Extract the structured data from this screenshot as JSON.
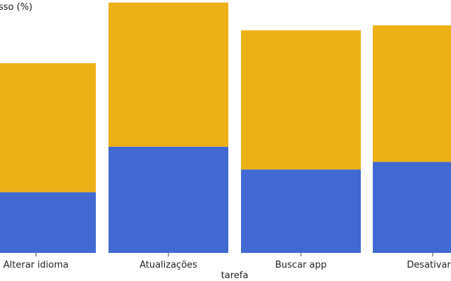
{
  "chart_data": {
    "type": "bar",
    "stacked": true,
    "ylabel": "sso (%)",
    "xlabel": "tarefa",
    "categories": [
      "Alterar idioma",
      "Atualizações",
      "Buscar app",
      "Desativar s"
    ],
    "series": [
      {
        "color": "#4169d1",
        "values": [
          24,
          42,
          33,
          36
        ]
      },
      {
        "color": "#edb118",
        "values": [
          51,
          57,
          55,
          54
        ]
      }
    ],
    "ylim": [
      0,
      100
    ],
    "grid": false,
    "legend": "none"
  }
}
